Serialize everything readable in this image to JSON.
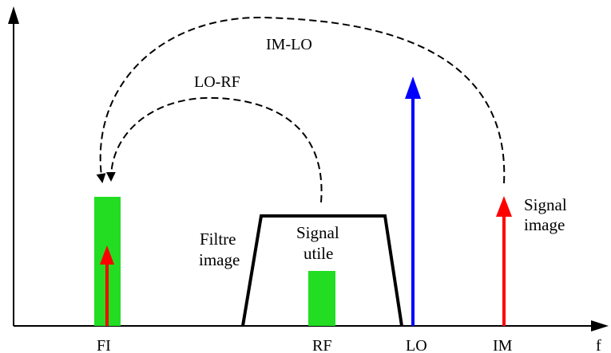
{
  "colors": {
    "axis": "#000000",
    "green_block": "#22dd22",
    "red_arrow": "#ff0000",
    "blue_arrow": "#0000ff",
    "filter": "#000000",
    "arc": "#000000"
  },
  "axis_labels": {
    "fi": "FI",
    "rf": "RF",
    "lo": "LO",
    "im": "IM",
    "f": "f"
  },
  "arc_labels": {
    "im_lo": "IM-LO",
    "lo_rf": "LO-RF"
  },
  "annotations": {
    "filtre_line1": "Filtre",
    "filtre_line2": "image",
    "signal_utile_line1": "Signal",
    "signal_utile_line2": "utile",
    "signal_image_line1": "Signal",
    "signal_image_line2": "image"
  }
}
